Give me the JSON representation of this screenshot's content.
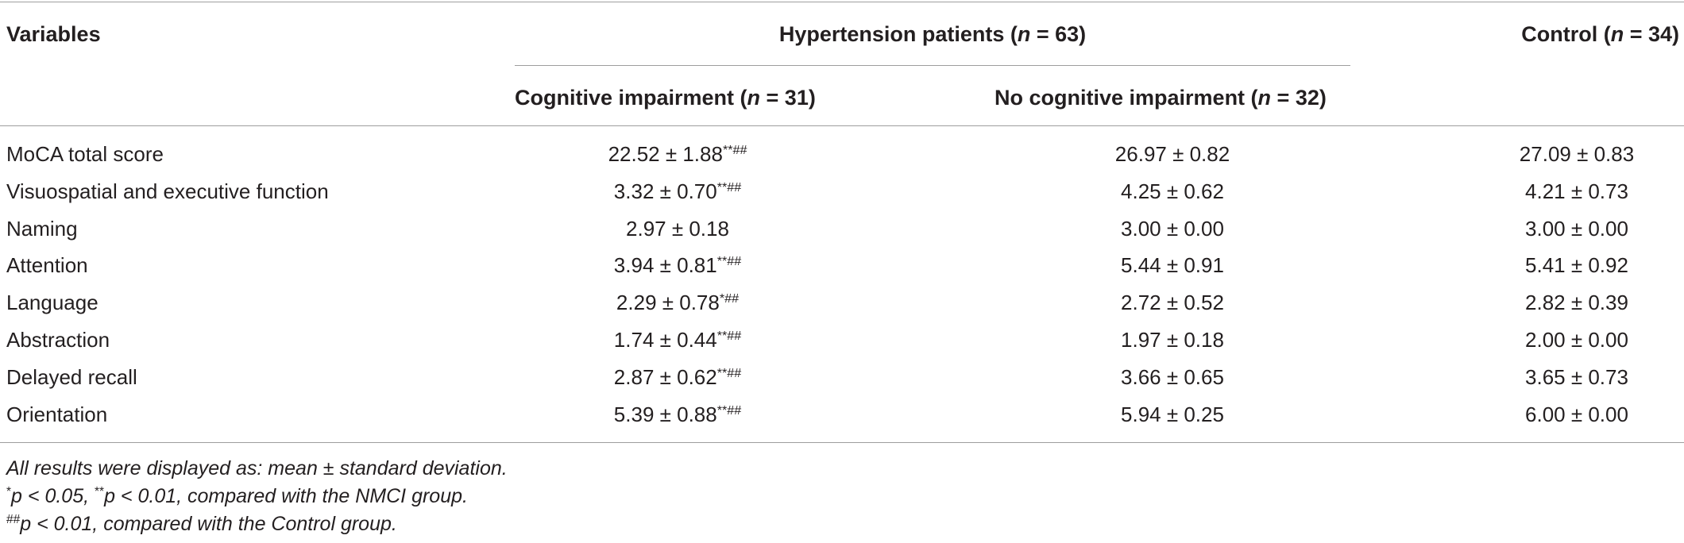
{
  "header": {
    "variables": "Variables",
    "group_main": "Hypertension patients (",
    "group_main_n": "n",
    "group_main_tail": " = 63)",
    "control": "Control (",
    "control_n": "n",
    "control_tail": " = 34)",
    "col_ci": "Cognitive impairment (",
    "col_ci_n": "n",
    "col_ci_tail": " = 31)",
    "col_nci": "No cognitive impairment (",
    "col_nci_n": "n",
    "col_nci_tail": " = 32)"
  },
  "rows": [
    {
      "label": "MoCA total score",
      "ci": "22.52 ± 1.88",
      "ci_sup": "**##",
      "nci": "26.97 ± 0.82",
      "control": "27.09 ± 0.83"
    },
    {
      "label": "Visuospatial and executive function",
      "ci": "3.32 ± 0.70",
      "ci_sup": "**##",
      "nci": "4.25 ± 0.62",
      "control": "4.21 ± 0.73"
    },
    {
      "label": "Naming",
      "ci": "2.97 ± 0.18",
      "ci_sup": "",
      "nci": "3.00 ± 0.00",
      "control": "3.00 ± 0.00"
    },
    {
      "label": "Attention",
      "ci": "3.94 ± 0.81",
      "ci_sup": "**##",
      "nci": "5.44 ± 0.91",
      "control": "5.41 ± 0.92"
    },
    {
      "label": "Language",
      "ci": "2.29 ± 0.78",
      "ci_sup": "*##",
      "nci": "2.72 ± 0.52",
      "control": "2.82 ± 0.39"
    },
    {
      "label": "Abstraction",
      "ci": "1.74 ± 0.44",
      "ci_sup": "**##",
      "nci": "1.97 ± 0.18",
      "control": "2.00 ± 0.00"
    },
    {
      "label": "Delayed recall",
      "ci": "2.87 ± 0.62",
      "ci_sup": "**##",
      "nci": "3.66 ± 0.65",
      "control": "3.65 ± 0.73"
    },
    {
      "label": "Orientation",
      "ci": "5.39 ± 0.88",
      "ci_sup": "**##",
      "nci": "5.94 ± 0.25",
      "control": "6.00 ± 0.00"
    }
  ],
  "footnotes": {
    "line1": "All results were displayed as: mean ± standard deviation.",
    "line2_sup1": "*",
    "line2_a": "p < 0.05, ",
    "line2_sup2": "**",
    "line2_b": "p < 0.01, compared with the NMCI group.",
    "line3_sup": "##",
    "line3": "p < 0.01, compared with the Control group."
  }
}
